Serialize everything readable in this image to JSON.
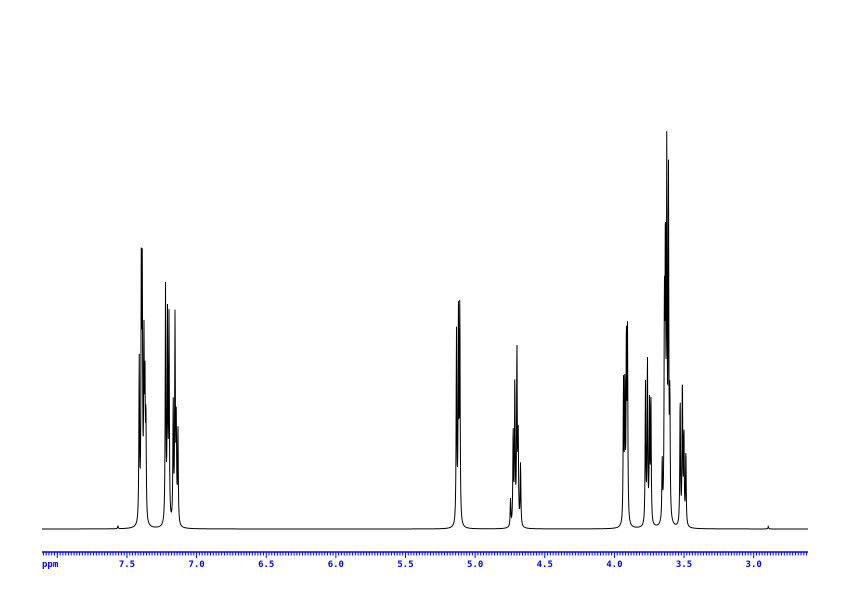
{
  "chart_data": {
    "type": "line",
    "title": "",
    "xlabel": "ppm",
    "ylabel": "",
    "xlim": [
      8.11,
      2.61
    ],
    "x_reversed": true,
    "ylim": [
      0,
      100
    ],
    "grid": false,
    "x_ticks": [
      "7.5",
      "7.0",
      "6.5",
      "6.0",
      "5.5",
      "5.0",
      "4.5",
      "4.0",
      "3.5",
      "3.0"
    ],
    "x_tick_values": [
      7.5,
      7.0,
      6.5,
      6.0,
      5.5,
      5.0,
      4.5,
      4.0,
      3.5,
      3.0
    ],
    "minor_tick_step": 0.02,
    "axis_color": "#0000ff",
    "trace_color": "#000000",
    "peaks": [
      {
        "ppm": 7.565,
        "intensity": 0.8
      },
      {
        "ppm": 7.412,
        "intensity": 45.8
      },
      {
        "ppm": 7.397,
        "intensity": 69.2
      },
      {
        "ppm": 7.39,
        "intensity": 65.3
      },
      {
        "ppm": 7.378,
        "intensity": 48.3
      },
      {
        "ppm": 7.371,
        "intensity": 36.2
      },
      {
        "ppm": 7.364,
        "intensity": 28.5
      },
      {
        "ppm": 7.223,
        "intensity": 67.2
      },
      {
        "ppm": 7.209,
        "intensity": 57.1
      },
      {
        "ppm": 7.198,
        "intensity": 57.1
      },
      {
        "ppm": 7.168,
        "intensity": 33.6
      },
      {
        "ppm": 7.155,
        "intensity": 57.1
      },
      {
        "ppm": 7.146,
        "intensity": 27.1
      },
      {
        "ppm": 7.134,
        "intensity": 27.1
      },
      {
        "ppm": 5.134,
        "intensity": 54.2
      },
      {
        "ppm": 5.12,
        "intensity": 59.6
      },
      {
        "ppm": 5.11,
        "intensity": 61.0
      },
      {
        "ppm": 4.746,
        "intensity": 7.6
      },
      {
        "ppm": 4.727,
        "intensity": 26.6
      },
      {
        "ppm": 4.715,
        "intensity": 40.4
      },
      {
        "ppm": 4.7,
        "intensity": 49.7
      },
      {
        "ppm": 4.691,
        "intensity": 25.1
      },
      {
        "ppm": 4.674,
        "intensity": 17.5
      },
      {
        "ppm": 3.935,
        "intensity": 39.3
      },
      {
        "ppm": 3.925,
        "intensity": 39.3
      },
      {
        "ppm": 3.914,
        "intensity": 51.7
      },
      {
        "ppm": 3.906,
        "intensity": 51.7
      },
      {
        "ppm": 3.777,
        "intensity": 39.8
      },
      {
        "ppm": 3.763,
        "intensity": 47.2
      },
      {
        "ppm": 3.748,
        "intensity": 33.0
      },
      {
        "ppm": 3.738,
        "intensity": 36.4
      },
      {
        "ppm": 3.657,
        "intensity": 16.7
      },
      {
        "ppm": 3.641,
        "intensity": 57.6
      },
      {
        "ppm": 3.634,
        "intensity": 75.4
      },
      {
        "ppm": 3.624,
        "intensity": 100.0
      },
      {
        "ppm": 3.612,
        "intensity": 96.6
      },
      {
        "ppm": 3.602,
        "intensity": 33.0
      },
      {
        "ppm": 3.528,
        "intensity": 35.9
      },
      {
        "ppm": 3.512,
        "intensity": 41.2
      },
      {
        "ppm": 3.501,
        "intensity": 25.7
      },
      {
        "ppm": 3.487,
        "intensity": 20.9
      },
      {
        "ppm": 2.895,
        "intensity": 0.7
      }
    ]
  }
}
